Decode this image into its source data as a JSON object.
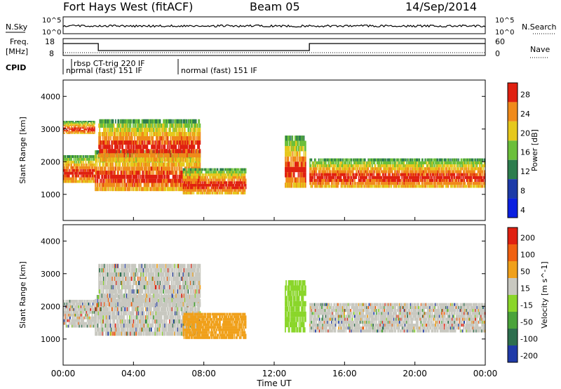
{
  "header": {
    "station": "Fort Hays West (fitACF)",
    "beam": "Beam 05",
    "date": "14/Sep/2014"
  },
  "top_panels": {
    "nsky_label": "N.Sky",
    "nsearch_label": "N.Search",
    "noise_ticks_left": [
      "10^5",
      "10^0"
    ],
    "noise_ticks_right": [
      "10^5",
      "10^0"
    ],
    "freq_label_1": "Freq.",
    "freq_label_2": "[MHz]",
    "freq_ticks": [
      "18",
      "8"
    ],
    "nave_label": "Nave",
    "nave_ticks": [
      "60",
      "0"
    ],
    "cpid_label": "CPID",
    "cpid_segments": [
      {
        "text": "rbsp CT-trig 220 IF",
        "start": 0.5
      },
      {
        "text": "normal (fast) 151 IF",
        "start": 0.0
      },
      {
        "text": "normal (fast) 151 IF",
        "start": 6.5
      }
    ]
  },
  "chart_data": [
    {
      "type": "heatmap",
      "name": "Power",
      "colorbar_label": "Power [dB]",
      "colorbar_ticks": [
        "28",
        "24",
        "20",
        "16",
        "12",
        "8",
        "4"
      ],
      "colors": [
        "#0a1fe0",
        "#1c3aa8",
        "#2d7d4e",
        "#6bbf3a",
        "#e6c81c",
        "#f08a1a",
        "#e02010"
      ],
      "ylabel": "Slant Range [km]",
      "yticks": [
        "4000",
        "3000",
        "2000",
        "1000"
      ],
      "ylim": [
        200,
        4500
      ],
      "regions": [
        {
          "x": [
            0.0,
            1.8
          ],
          "lo": 1350,
          "hi": 2200
        },
        {
          "x": [
            0.0,
            1.8
          ],
          "lo": 2850,
          "hi": 3250
        },
        {
          "x": [
            1.8,
            7.8
          ],
          "lo": 1100,
          "hi": 2350
        },
        {
          "x": [
            2.0,
            7.8
          ],
          "lo": 2000,
          "hi": 3300
        },
        {
          "x": [
            6.8,
            10.4
          ],
          "lo": 1000,
          "hi": 1800
        },
        {
          "x": [
            12.6,
            13.8
          ],
          "lo": 1200,
          "hi": 2800
        },
        {
          "x": [
            14.0,
            24.0
          ],
          "lo": 1200,
          "hi": 2100
        }
      ]
    },
    {
      "type": "heatmap",
      "name": "Velocity",
      "colorbar_label": "Velocity [m s^-1]",
      "colorbar_ticks": [
        "200",
        "100",
        "50",
        "15",
        "-15",
        "-50",
        "-100",
        "-200"
      ],
      "colors": [
        "#1f3aa8",
        "#2d6e4e",
        "#4aa33a",
        "#8ad62a",
        "#c8c8c0",
        "#f0a01a",
        "#f06010",
        "#e02010"
      ],
      "ylabel": "Slant Range [km]",
      "yticks": [
        "4000",
        "3000",
        "2000",
        "1000"
      ],
      "ylim": [
        200,
        4500
      ],
      "regions": [
        {
          "x": [
            0.0,
            1.8
          ],
          "lo": 1350,
          "hi": 2200
        },
        {
          "x": [
            1.8,
            7.8
          ],
          "lo": 1100,
          "hi": 2350
        },
        {
          "x": [
            2.0,
            7.8
          ],
          "lo": 2000,
          "hi": 3300
        },
        {
          "x": [
            6.8,
            10.4
          ],
          "lo": 1000,
          "hi": 1800
        },
        {
          "x": [
            12.6,
            13.8
          ],
          "lo": 1200,
          "hi": 2800
        },
        {
          "x": [
            14.0,
            24.0
          ],
          "lo": 1200,
          "hi": 2100
        }
      ]
    }
  ],
  "x_axis": {
    "ticks": [
      "00:00",
      "04:00",
      "08:00",
      "12:00",
      "16:00",
      "20:00",
      "00:00"
    ],
    "xlabel": "Time UT",
    "range_hours": [
      0,
      24
    ]
  }
}
